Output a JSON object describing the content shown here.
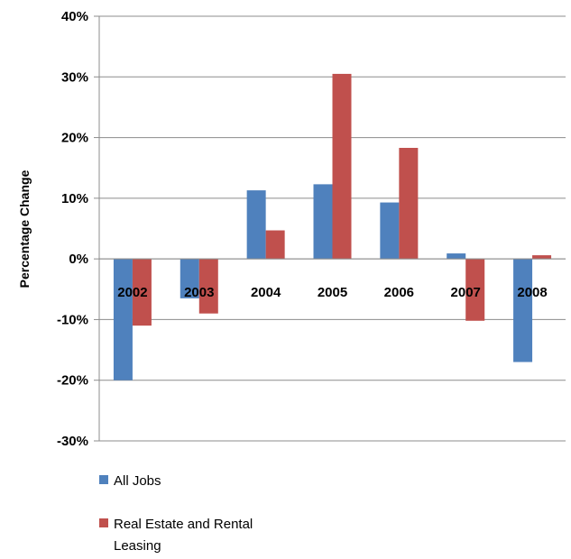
{
  "chart_data": {
    "type": "bar",
    "title": "",
    "xlabel": "",
    "ylabel": "Percentage Change",
    "categories": [
      "2002",
      "2003",
      "2004",
      "2005",
      "2006",
      "2007",
      "2008"
    ],
    "series": [
      {
        "name": "All Jobs",
        "color": "#4f81bd",
        "values": [
          -20,
          -6.5,
          11.3,
          12.3,
          9.3,
          0.9,
          -17
        ]
      },
      {
        "name": "Real Estate and Rental Leasing",
        "color": "#c0504d",
        "values": [
          -11,
          -9,
          4.7,
          30.5,
          18.3,
          -10.2,
          0.6
        ]
      }
    ],
    "ylim": [
      -30,
      40
    ],
    "yticks": [
      40,
      30,
      20,
      10,
      0,
      -10,
      -20,
      -30
    ],
    "ytick_labels": [
      "40%",
      "30%",
      "20%",
      "10%",
      "0%",
      "-10%",
      "-20%",
      "-30%"
    ],
    "grid": true,
    "legend_position": "bottom-left",
    "legend": [
      {
        "line1": "All Jobs",
        "line2": ""
      },
      {
        "line1": "Real Estate and Rental",
        "line2": "Leasing"
      }
    ]
  }
}
